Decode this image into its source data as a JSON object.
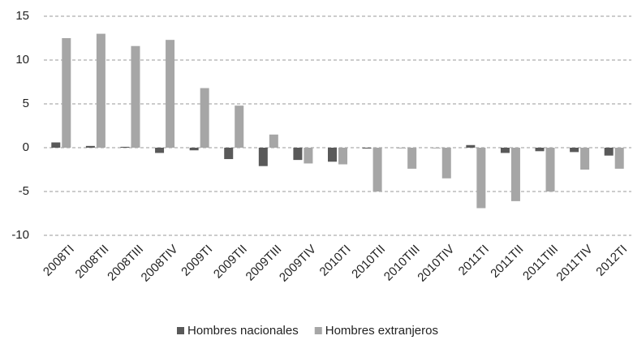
{
  "chart_data": {
    "type": "bar",
    "categories": [
      "2008TI",
      "2008TII",
      "2008TIII",
      "2008TIV",
      "2009TI",
      "2009TII",
      "2009TIII",
      "2009TIV",
      "2010TI",
      "2010TII",
      "2010TIII",
      "2010TIV",
      "2011TI",
      "2011TII",
      "2011TIII",
      "2011TIV",
      "2012TI"
    ],
    "series": [
      {
        "name": "Hombres nacionales",
        "color": "#595959",
        "values": [
          0.6,
          0.2,
          0.1,
          -0.6,
          -0.3,
          -1.3,
          -2.1,
          -1.4,
          -1.6,
          -0.1,
          0,
          0,
          0.3,
          -0.6,
          -0.4,
          -0.5,
          -0.9
        ]
      },
      {
        "name": "Hombres extranjeros",
        "color": "#a6a6a6",
        "values": [
          12.5,
          13.0,
          11.6,
          12.3,
          6.8,
          4.8,
          1.5,
          -1.8,
          -1.9,
          -5.0,
          -2.4,
          -3.5,
          -6.9,
          -6.1,
          -5.0,
          -2.5,
          -2.4
        ]
      }
    ],
    "ylim": [
      -10,
      15
    ],
    "yticks": [
      -10,
      -5,
      0,
      5,
      10,
      15
    ],
    "grid": true
  }
}
